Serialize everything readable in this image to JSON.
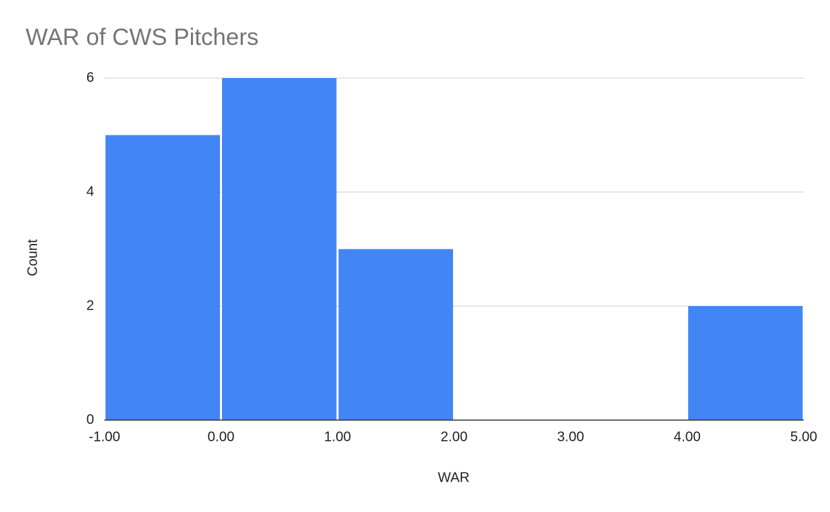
{
  "chart_data": {
    "type": "histogram",
    "title": "WAR of CWS Pitchers",
    "x_label": "WAR",
    "y_label": "Count",
    "bins": [
      -1,
      0,
      1,
      2,
      3,
      4,
      5
    ],
    "values": [
      5,
      6,
      3,
      0,
      0,
      2
    ],
    "color": "#4285f4",
    "xlim": [
      -1,
      5
    ],
    "xticks": [
      {
        "value": -1,
        "label": "-1.00"
      },
      {
        "value": 0,
        "label": "0.00"
      },
      {
        "value": 1,
        "label": "1.00"
      },
      {
        "value": 2,
        "label": "2.00"
      },
      {
        "value": 3,
        "label": "3.00"
      },
      {
        "value": 4,
        "label": "4.00"
      },
      {
        "value": 5,
        "label": "5.00"
      }
    ],
    "ylim": [
      0,
      6
    ],
    "yticks": [
      0,
      2,
      4,
      6
    ],
    "grid": true
  }
}
